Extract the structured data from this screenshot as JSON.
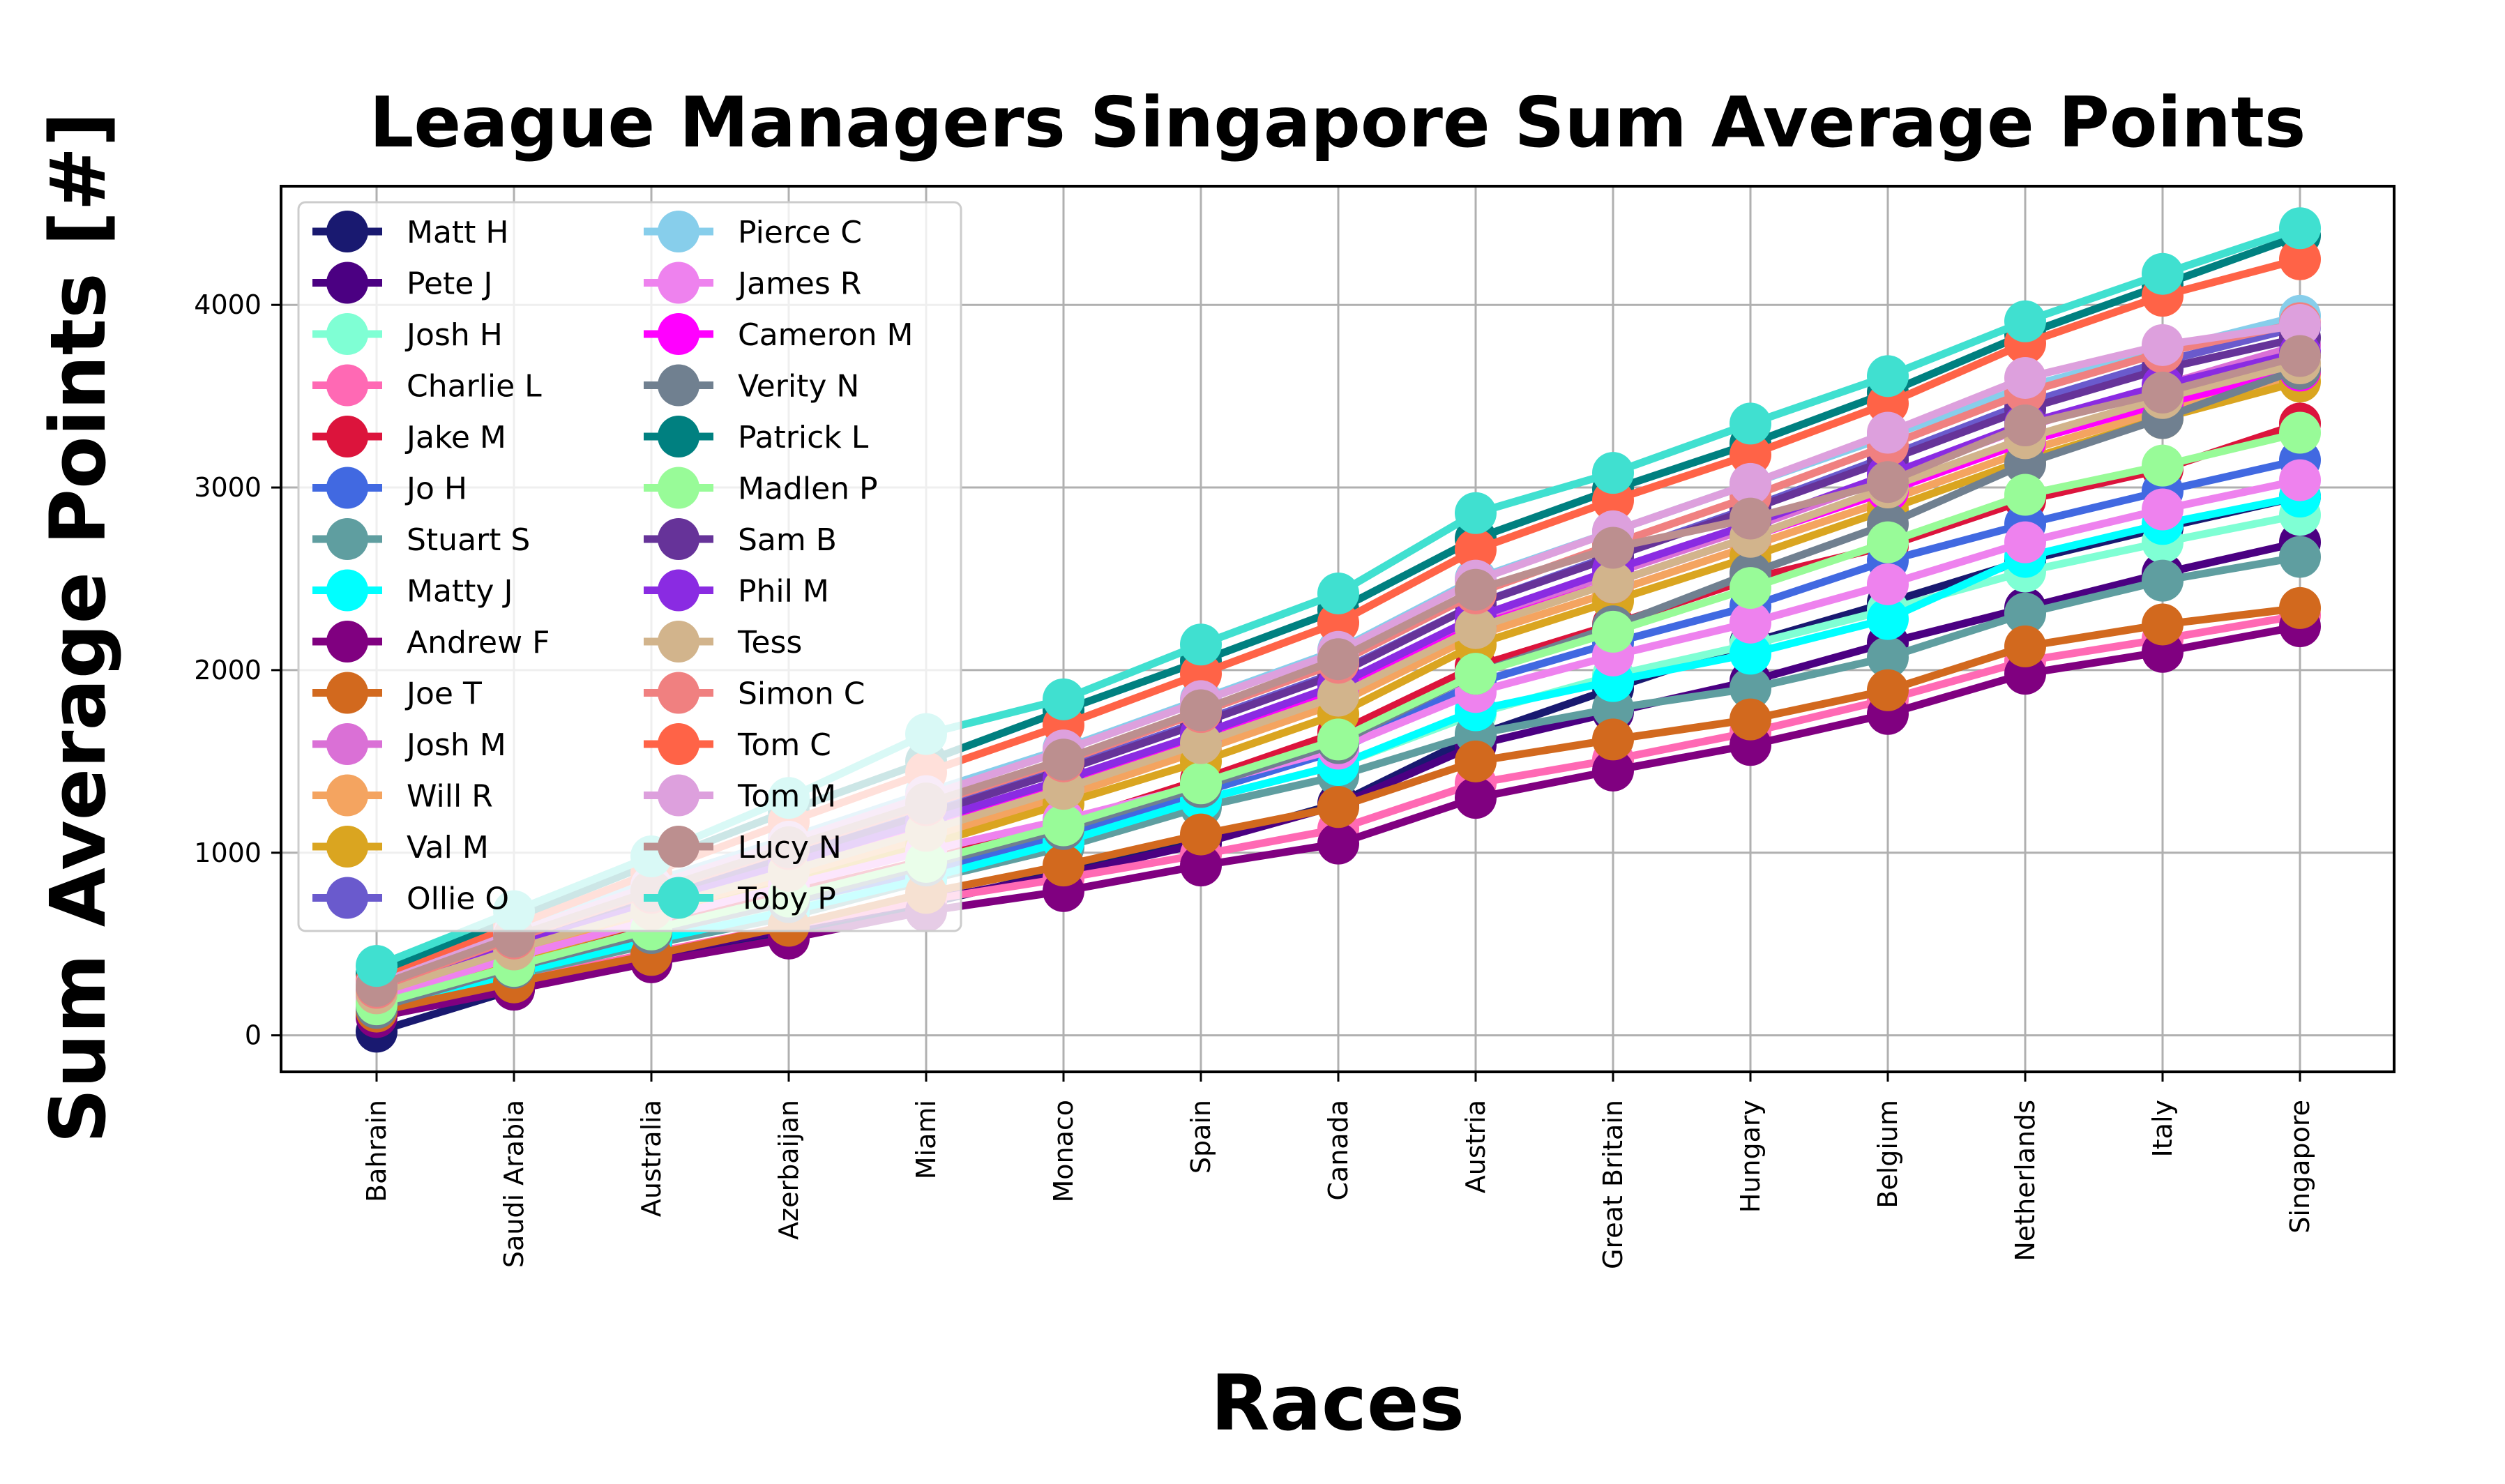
{
  "chart_data": {
    "type": "line",
    "title": "League Managers Singapore Sum Average Points",
    "xlabel": "Races",
    "ylabel": "Sum Average Points [#]",
    "categories": [
      "Bahrain",
      "Saudi Arabia",
      "Australia",
      "Azerbaijan",
      "Miami",
      "Monaco",
      "Spain",
      "Canada",
      "Austria",
      "Great Britain",
      "Hungary",
      "Belgium",
      "Netherlands",
      "Italy",
      "Singapore"
    ],
    "yticks": [
      "0",
      "1000",
      "2000",
      "3000",
      "4000"
    ],
    "ylim": [
      -200,
      4650
    ],
    "grid": true,
    "legend_position": "top-left",
    "series": [
      {
        "name": "Matt H",
        "color": "#191970",
        "values": [
          20,
          250,
          430,
          570,
          720,
          900,
          1060,
          1270,
          1640,
          1900,
          2150,
          2370,
          2600,
          2780,
          2950
        ]
      },
      {
        "name": "Pete J",
        "color": "#4b0082",
        "values": [
          160,
          290,
          440,
          580,
          740,
          880,
          1050,
          1260,
          1590,
          1770,
          1940,
          2150,
          2340,
          2530,
          2700
        ]
      },
      {
        "name": "Josh H",
        "color": "#7fffd4",
        "values": [
          200,
          400,
          560,
          720,
          900,
          1070,
          1290,
          1480,
          1760,
          1970,
          2140,
          2330,
          2540,
          2700,
          2850
        ]
      },
      {
        "name": "Charlie L",
        "color": "#ff69b4",
        "values": [
          170,
          300,
          450,
          600,
          740,
          860,
          990,
          1130,
          1380,
          1510,
          1660,
          1840,
          2050,
          2170,
          2300
        ]
      },
      {
        "name": "Jake M",
        "color": "#dc143c",
        "values": [
          220,
          420,
          600,
          780,
          960,
          1160,
          1400,
          1660,
          2020,
          2250,
          2500,
          2680,
          2930,
          3100,
          3350
        ]
      },
      {
        "name": "Jo H",
        "color": "#4169e1",
        "values": [
          180,
          380,
          560,
          730,
          900,
          1100,
          1330,
          1560,
          1930,
          2150,
          2350,
          2600,
          2800,
          2980,
          3150
        ]
      },
      {
        "name": "Stuart S",
        "color": "#5f9ea0",
        "values": [
          120,
          330,
          500,
          650,
          850,
          1030,
          1250,
          1420,
          1650,
          1790,
          1900,
          2070,
          2310,
          2490,
          2620
        ]
      },
      {
        "name": "Matty J",
        "color": "#00ffff",
        "values": [
          140,
          340,
          520,
          680,
          860,
          1060,
          1290,
          1480,
          1780,
          1940,
          2090,
          2280,
          2620,
          2800,
          2950
        ]
      },
      {
        "name": "Andrew F",
        "color": "#800080",
        "values": [
          100,
          250,
          400,
          530,
          680,
          790,
          930,
          1050,
          1300,
          1450,
          1590,
          1760,
          1980,
          2100,
          2240
        ]
      },
      {
        "name": "Joe T",
        "color": "#d2691e",
        "values": [
          130,
          290,
          440,
          600,
          780,
          930,
          1100,
          1250,
          1500,
          1620,
          1730,
          1890,
          2130,
          2250,
          2340
        ]
      },
      {
        "name": "Josh M",
        "color": "#da70d6",
        "values": [
          250,
          500,
          730,
          950,
          1170,
          1400,
          1650,
          1900,
          2260,
          2530,
          2780,
          3050,
          3330,
          3560,
          3780
        ]
      },
      {
        "name": "Will R",
        "color": "#f4a460",
        "values": [
          210,
          450,
          660,
          860,
          1080,
          1310,
          1560,
          1820,
          2190,
          2430,
          2680,
          2930,
          3200,
          3420,
          3620
        ]
      },
      {
        "name": "Val M",
        "color": "#daa520",
        "values": [
          190,
          420,
          630,
          830,
          1040,
          1270,
          1500,
          1760,
          2140,
          2380,
          2620,
          2880,
          3150,
          3380,
          3580
        ]
      },
      {
        "name": "Ollie O",
        "color": "#6a5acd",
        "values": [
          260,
          520,
          760,
          990,
          1230,
          1460,
          1720,
          1990,
          2360,
          2630,
          2890,
          3170,
          3460,
          3690,
          3880
        ]
      },
      {
        "name": "Pierce C",
        "color": "#87ceeb",
        "values": [
          290,
          580,
          840,
          1080,
          1330,
          1570,
          1840,
          2110,
          2500,
          2760,
          3020,
          3280,
          3550,
          3750,
          3940
        ]
      },
      {
        "name": "James R",
        "color": "#ee82ee",
        "values": [
          200,
          430,
          630,
          820,
          1010,
          1180,
          1370,
          1570,
          1880,
          2080,
          2260,
          2470,
          2700,
          2880,
          3040
        ]
      },
      {
        "name": "Cameron M",
        "color": "#ff00ff",
        "values": [
          230,
          480,
          700,
          920,
          1140,
          1370,
          1620,
          1880,
          2240,
          2480,
          2730,
          2980,
          3250,
          3460,
          3640
        ]
      },
      {
        "name": "Verity N",
        "color": "#708090",
        "values": [
          150,
          370,
          560,
          730,
          930,
          1130,
          1360,
          1600,
          1980,
          2240,
          2530,
          2800,
          3130,
          3380,
          3650
        ]
      },
      {
        "name": "Patrick L",
        "color": "#008080",
        "values": [
          340,
          640,
          940,
          1230,
          1500,
          1780,
          2050,
          2330,
          2720,
          2990,
          3240,
          3520,
          3840,
          4110,
          4380
        ]
      },
      {
        "name": "Madlen P",
        "color": "#98fb98",
        "values": [
          170,
          380,
          580,
          760,
          950,
          1150,
          1380,
          1620,
          1980,
          2210,
          2450,
          2700,
          2960,
          3120,
          3300
        ]
      },
      {
        "name": "Sam B",
        "color": "#663399",
        "values": [
          250,
          510,
          750,
          980,
          1210,
          1450,
          1710,
          1980,
          2360,
          2620,
          2880,
          3150,
          3430,
          3650,
          3820
        ]
      },
      {
        "name": "Phil M",
        "color": "#8a2be2",
        "values": [
          240,
          490,
          720,
          940,
          1170,
          1400,
          1650,
          1920,
          2290,
          2550,
          2800,
          3070,
          3350,
          3560,
          3740
        ]
      },
      {
        "name": "Tess",
        "color": "#d2b48c",
        "values": [
          230,
          470,
          690,
          900,
          1120,
          1350,
          1600,
          1860,
          2230,
          2480,
          2730,
          3000,
          3270,
          3490,
          3680
        ]
      },
      {
        "name": "Simon C",
        "color": "#f08080",
        "values": [
          260,
          530,
          780,
          1020,
          1260,
          1500,
          1770,
          2040,
          2420,
          2690,
          2950,
          3230,
          3520,
          3740,
          3900
        ]
      },
      {
        "name": "Tom C",
        "color": "#ff6347",
        "values": [
          300,
          600,
          890,
          1170,
          1440,
          1700,
          1980,
          2260,
          2660,
          2930,
          3180,
          3460,
          3790,
          4050,
          4250
        ]
      },
      {
        "name": "Tom M",
        "color": "#dda0dd",
        "values": [
          280,
          560,
          820,
          1060,
          1310,
          1560,
          1830,
          2100,
          2490,
          2760,
          3020,
          3300,
          3600,
          3780,
          3890
        ]
      },
      {
        "name": "Lucy N",
        "color": "#bc8f8f",
        "values": [
          270,
          540,
          790,
          1030,
          1270,
          1510,
          1780,
          2060,
          2440,
          2670,
          2830,
          3030,
          3340,
          3520,
          3720
        ]
      },
      {
        "name": "Toby P",
        "color": "#40e0d0",
        "values": [
          380,
          680,
          980,
          1300,
          1650,
          1840,
          2140,
          2420,
          2860,
          3080,
          3350,
          3610,
          3910,
          4170,
          4420
        ]
      }
    ]
  }
}
